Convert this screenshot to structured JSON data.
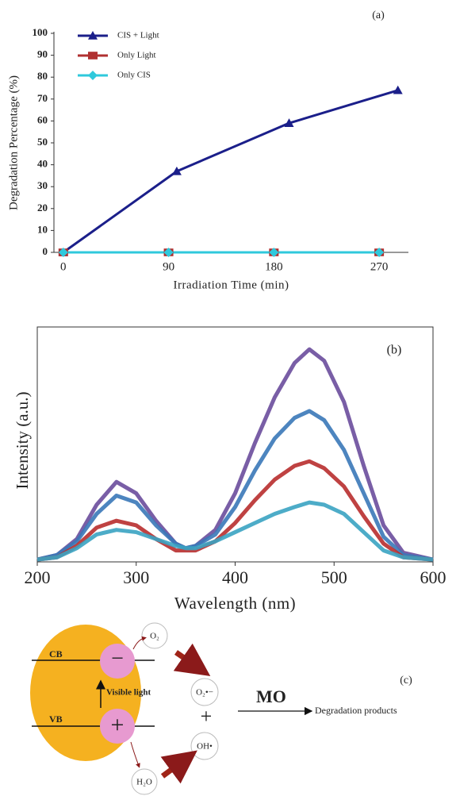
{
  "chart_data": [
    {
      "type": "line",
      "panel_label": "(a)",
      "y_label": "Degradation Percentage (%)",
      "x_label": "Irradiation Time (min)",
      "xlim": [
        -8,
        295
      ],
      "xticks": [
        0,
        90,
        180,
        270
      ],
      "ylim": [
        0,
        100
      ],
      "yticks": [
        0,
        10,
        20,
        30,
        40,
        50,
        60,
        70,
        80,
        90,
        100
      ],
      "grid": false,
      "legend": "upper left",
      "frame": false,
      "series": [
        {
          "name": "CIS + Light",
          "color": "#1b1f8a",
          "marker": "triangle",
          "x": [
            0,
            97,
            193,
            286
          ],
          "values": [
            0,
            37,
            59,
            74
          ]
        },
        {
          "name": "Only Light",
          "color": "#b03030",
          "marker": "square",
          "x": [
            0,
            90,
            180,
            270
          ],
          "values": [
            0,
            0,
            0,
            0
          ]
        },
        {
          "name": "Only CIS",
          "color": "#2fc9dc",
          "marker": "diamond",
          "x": [
            0,
            90,
            180,
            270
          ],
          "values": [
            0,
            0,
            0,
            0
          ]
        }
      ]
    },
    {
      "type": "line",
      "panel_label": "(b)",
      "y_label": "Intensity (a.u.)",
      "x_label": "Wavelength (nm)",
      "xlim": [
        200,
        600
      ],
      "xticks": [
        200,
        300,
        400,
        500,
        600
      ],
      "ylim": [
        0,
        100
      ],
      "grid": false,
      "frame": true,
      "x": [
        200,
        220,
        240,
        260,
        280,
        300,
        320,
        340,
        350,
        360,
        380,
        400,
        420,
        440,
        460,
        475,
        490,
        510,
        530,
        550,
        570,
        600
      ],
      "series": [
        {
          "color": "#6a4c9c",
          "values": [
            1,
            3,
            10,
            25,
            35,
            30,
            18,
            8,
            6,
            7,
            14,
            30,
            52,
            72,
            87,
            93,
            88,
            70,
            42,
            16,
            4,
            1
          ]
        },
        {
          "color": "#3a78b8",
          "values": [
            1,
            3,
            9,
            21,
            29,
            26,
            16,
            8,
            6,
            7,
            12,
            24,
            40,
            54,
            63,
            66,
            62,
            49,
            30,
            11,
            3,
            1
          ]
        },
        {
          "color": "#b82e2e",
          "values": [
            1,
            2,
            7,
            15,
            18,
            16,
            10,
            5,
            5,
            5,
            9,
            17,
            27,
            36,
            42,
            44,
            41,
            33,
            20,
            8,
            2,
            1
          ]
        },
        {
          "color": "#3aa3c2",
          "values": [
            1,
            2,
            6,
            12,
            14,
            13,
            10,
            7,
            6,
            6,
            9,
            13,
            17,
            21,
            24,
            26,
            25,
            21,
            13,
            5,
            2,
            1
          ]
        }
      ]
    }
  ],
  "diagram": {
    "panel_label": "(c)",
    "cb": "CB",
    "vb": "VB",
    "excitation": "Visible light",
    "electron": "−",
    "hole": "+",
    "oxygen": "O₂",
    "water": "H₂O",
    "superoxide": "O₂•−",
    "hydroxyl": "OH•",
    "plus": "+",
    "pollutant": "MO",
    "products": "Degradation products"
  }
}
